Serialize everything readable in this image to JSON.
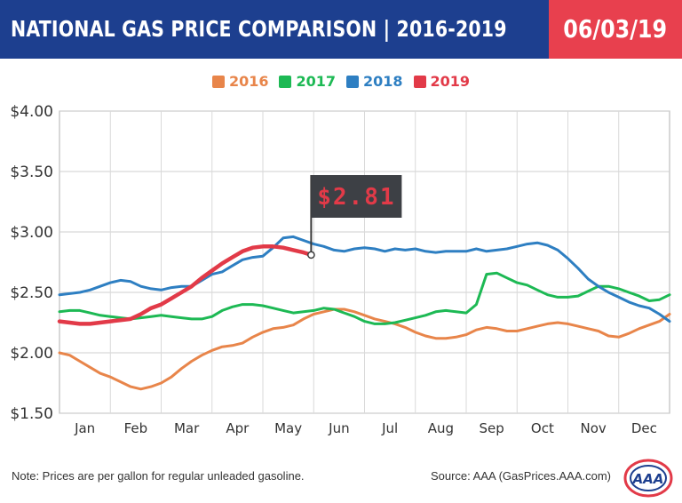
{
  "header": {
    "title": "NATIONAL GAS PRICE COMPARISON | 2016-2019",
    "date": "06/03/19",
    "title_bg": "#1d3f8f",
    "date_bg": "#e8404e"
  },
  "footer": {
    "note": "Note: Prices are per gallon for regular unleaded gasoline.",
    "source": "Source: AAA (GasPrices.AAA.com)",
    "logo_text": "AAA"
  },
  "callout": {
    "label": "$2.81",
    "month": 5.45,
    "value": 2.81
  },
  "chart_data": {
    "type": "line",
    "title": "",
    "xlabel": "",
    "ylabel": "",
    "ylim": [
      1.5,
      4.0
    ],
    "xlim": [
      0.5,
      12.5
    ],
    "grid": true,
    "legend_position": "top-center",
    "y_ticks": [
      1.5,
      2.0,
      2.5,
      3.0,
      3.5,
      4.0
    ],
    "y_tick_labels": [
      "$1.50",
      "$2.00",
      "$2.50",
      "$3.00",
      "$3.50",
      "$4.00"
    ],
    "categories": [
      "Jan",
      "Feb",
      "Mar",
      "Apr",
      "May",
      "Jun",
      "Jul",
      "Aug",
      "Sep",
      "Oct",
      "Nov",
      "Dec"
    ],
    "series": [
      {
        "name": "2016",
        "color": "#e8854a",
        "x": [
          0.5,
          0.7,
          0.9,
          1.1,
          1.3,
          1.5,
          1.7,
          1.9,
          2.1,
          2.3,
          2.5,
          2.7,
          2.9,
          3.1,
          3.3,
          3.5,
          3.7,
          3.9,
          4.1,
          4.3,
          4.5,
          4.7,
          4.9,
          5.1,
          5.3,
          5.5,
          5.7,
          5.9,
          6.1,
          6.3,
          6.5,
          6.7,
          6.9,
          7.1,
          7.3,
          7.5,
          7.7,
          7.9,
          8.1,
          8.3,
          8.5,
          8.7,
          8.9,
          9.1,
          9.3,
          9.5,
          9.7,
          9.9,
          10.1,
          10.3,
          10.5,
          10.7,
          10.9,
          11.1,
          11.3,
          11.5,
          11.7,
          11.9,
          12.1,
          12.3,
          12.5
        ],
        "values": [
          2.0,
          1.98,
          1.93,
          1.88,
          1.83,
          1.8,
          1.76,
          1.72,
          1.7,
          1.72,
          1.75,
          1.8,
          1.87,
          1.93,
          1.98,
          2.02,
          2.05,
          2.06,
          2.08,
          2.13,
          2.17,
          2.2,
          2.21,
          2.23,
          2.28,
          2.32,
          2.34,
          2.36,
          2.36,
          2.34,
          2.31,
          2.28,
          2.26,
          2.24,
          2.21,
          2.17,
          2.14,
          2.12,
          2.12,
          2.13,
          2.15,
          2.19,
          2.21,
          2.2,
          2.18,
          2.18,
          2.2,
          2.22,
          2.24,
          2.25,
          2.24,
          2.22,
          2.2,
          2.18,
          2.14,
          2.13,
          2.16,
          2.2,
          2.23,
          2.26,
          2.32
        ]
      },
      {
        "name": "2017",
        "color": "#1db954",
        "x": [
          0.5,
          0.7,
          0.9,
          1.1,
          1.3,
          1.5,
          1.7,
          1.9,
          2.1,
          2.3,
          2.5,
          2.7,
          2.9,
          3.1,
          3.3,
          3.5,
          3.7,
          3.9,
          4.1,
          4.3,
          4.5,
          4.7,
          4.9,
          5.1,
          5.3,
          5.5,
          5.7,
          5.9,
          6.1,
          6.3,
          6.5,
          6.7,
          6.9,
          7.1,
          7.3,
          7.5,
          7.7,
          7.9,
          8.1,
          8.3,
          8.5,
          8.7,
          8.9,
          9.1,
          9.3,
          9.5,
          9.7,
          9.9,
          10.1,
          10.3,
          10.5,
          10.7,
          10.9,
          11.1,
          11.3,
          11.5,
          11.7,
          11.9,
          12.1,
          12.3,
          12.5
        ],
        "values": [
          2.34,
          2.35,
          2.35,
          2.33,
          2.31,
          2.3,
          2.29,
          2.28,
          2.29,
          2.3,
          2.31,
          2.3,
          2.29,
          2.28,
          2.28,
          2.3,
          2.35,
          2.38,
          2.4,
          2.4,
          2.39,
          2.37,
          2.35,
          2.33,
          2.34,
          2.35,
          2.37,
          2.36,
          2.33,
          2.3,
          2.26,
          2.24,
          2.24,
          2.25,
          2.27,
          2.29,
          2.31,
          2.34,
          2.35,
          2.34,
          2.33,
          2.4,
          2.65,
          2.66,
          2.62,
          2.58,
          2.56,
          2.52,
          2.48,
          2.46,
          2.46,
          2.47,
          2.51,
          2.55,
          2.55,
          2.53,
          2.5,
          2.47,
          2.43,
          2.44,
          2.48
        ]
      },
      {
        "name": "2018",
        "color": "#2e7fc2",
        "x": [
          0.5,
          0.7,
          0.9,
          1.1,
          1.3,
          1.5,
          1.7,
          1.9,
          2.1,
          2.3,
          2.5,
          2.7,
          2.9,
          3.1,
          3.3,
          3.5,
          3.7,
          3.9,
          4.1,
          4.3,
          4.5,
          4.7,
          4.9,
          5.1,
          5.3,
          5.5,
          5.7,
          5.9,
          6.1,
          6.3,
          6.5,
          6.7,
          6.9,
          7.1,
          7.3,
          7.5,
          7.7,
          7.9,
          8.1,
          8.3,
          8.5,
          8.7,
          8.9,
          9.1,
          9.3,
          9.5,
          9.7,
          9.9,
          10.1,
          10.3,
          10.5,
          10.7,
          10.9,
          11.1,
          11.3,
          11.5,
          11.7,
          11.9,
          12.1,
          12.3,
          12.5
        ],
        "values": [
          2.48,
          2.49,
          2.5,
          2.52,
          2.55,
          2.58,
          2.6,
          2.59,
          2.55,
          2.53,
          2.52,
          2.54,
          2.55,
          2.55,
          2.6,
          2.65,
          2.67,
          2.72,
          2.77,
          2.79,
          2.8,
          2.87,
          2.95,
          2.96,
          2.93,
          2.9,
          2.88,
          2.85,
          2.84,
          2.86,
          2.87,
          2.86,
          2.84,
          2.86,
          2.85,
          2.86,
          2.84,
          2.83,
          2.84,
          2.84,
          2.84,
          2.86,
          2.84,
          2.85,
          2.86,
          2.88,
          2.9,
          2.91,
          2.89,
          2.85,
          2.78,
          2.7,
          2.61,
          2.55,
          2.5,
          2.46,
          2.42,
          2.39,
          2.37,
          2.32,
          2.26
        ]
      },
      {
        "name": "2019",
        "color": "#e23a48",
        "x": [
          0.5,
          0.7,
          0.9,
          1.1,
          1.3,
          1.5,
          1.7,
          1.9,
          2.1,
          2.3,
          2.5,
          2.7,
          2.9,
          3.1,
          3.3,
          3.5,
          3.7,
          3.9,
          4.1,
          4.3,
          4.5,
          4.7,
          4.9,
          5.1,
          5.3,
          5.45
        ],
        "values": [
          2.26,
          2.25,
          2.24,
          2.24,
          2.25,
          2.26,
          2.27,
          2.28,
          2.32,
          2.37,
          2.4,
          2.45,
          2.5,
          2.55,
          2.62,
          2.68,
          2.74,
          2.79,
          2.84,
          2.87,
          2.88,
          2.88,
          2.87,
          2.85,
          2.83,
          2.81
        ]
      }
    ]
  }
}
